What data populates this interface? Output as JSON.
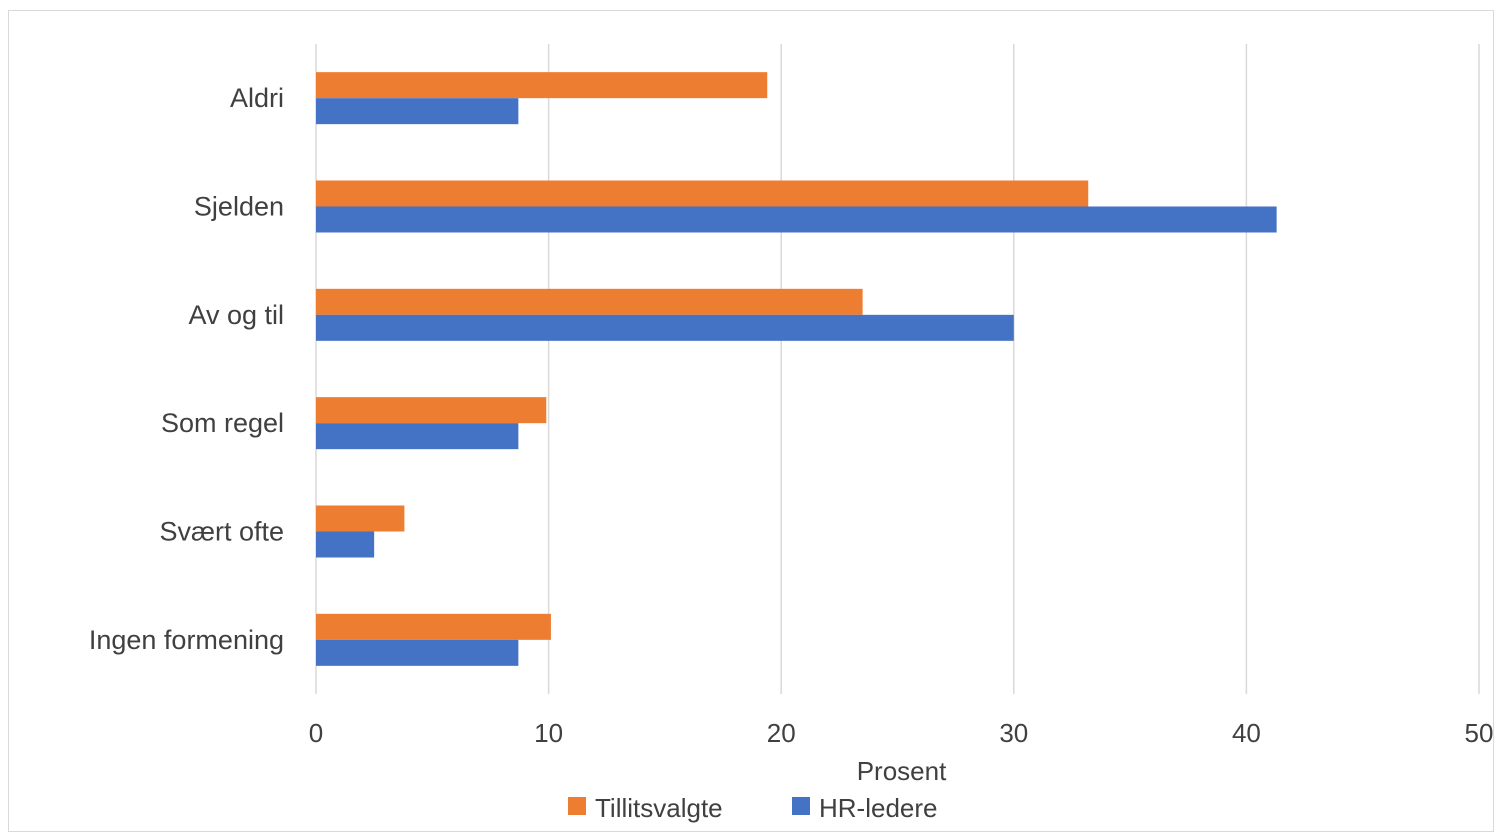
{
  "chart_data": {
    "type": "bar",
    "orientation": "horizontal",
    "categories": [
      "Aldri",
      "Sjelden",
      "Av og til",
      "Som regel",
      "Svært ofte",
      "Ingen formening"
    ],
    "series": [
      {
        "name": "Tillitsvalgte",
        "values": [
          19.4,
          33.2,
          23.5,
          9.9,
          3.8,
          10.1
        ],
        "color": "#ed7d31"
      },
      {
        "name": "HR-ledere",
        "values": [
          8.7,
          41.3,
          30.0,
          8.7,
          2.5,
          8.7
        ],
        "color": "#4472c4"
      }
    ],
    "xlabel": "Prosent",
    "ylabel": "",
    "xlim": [
      0,
      50
    ],
    "xticks": [
      0,
      10,
      20,
      30,
      40,
      50
    ],
    "grid": "vertical",
    "legend_position": "bottom"
  }
}
